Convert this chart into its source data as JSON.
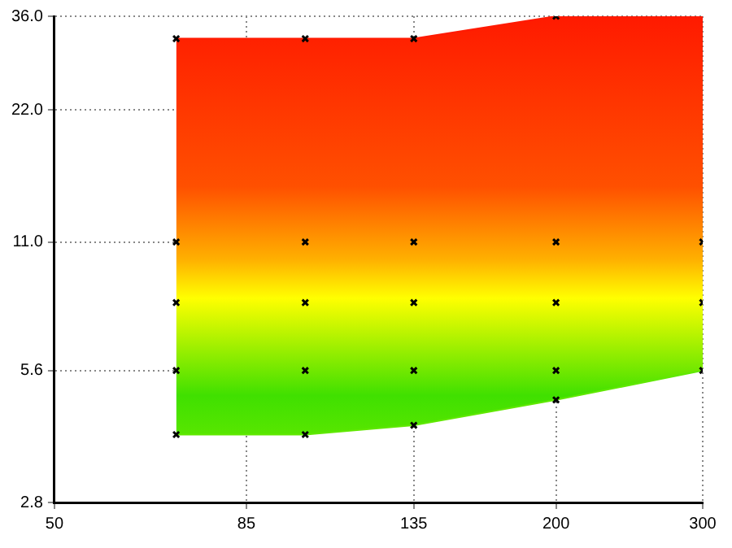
{
  "chart_data": {
    "type": "scatter",
    "log": "xy",
    "grid": true,
    "legend": false,
    "marker": "cross",
    "xlim": [
      50,
      300
    ],
    "xticks": [
      50,
      85,
      135,
      200,
      300
    ],
    "ylim": [
      2.8,
      36
    ],
    "yticks": [
      {
        "value": 2.8,
        "label": "2.8"
      },
      {
        "value": 5.6,
        "label": "5.6"
      },
      {
        "value": 11,
        "label": "11.0"
      },
      {
        "value": 22,
        "label": "22.0"
      },
      {
        "value": 36,
        "label": "36.0"
      }
    ],
    "series": [
      {
        "type": "area",
        "color": "#ff1a00",
        "marker": "none",
        "x": [
          70,
          100,
          135,
          200,
          300
        ],
        "values": [
          32,
          32,
          32,
          36,
          36
        ]
      },
      {
        "type": "line",
        "color": "#60e800",
        "marker": "none",
        "x": [
          70,
          100,
          135,
          200,
          300
        ],
        "values": [
          4,
          4,
          4.2,
          4.8,
          5.6
        ]
      },
      {
        "color": "#000000",
        "x": [
          70,
          70,
          70,
          70,
          70,
          100,
          100,
          100,
          100,
          100,
          135,
          135,
          135,
          135,
          135,
          200,
          200,
          200,
          200,
          200,
          300,
          300,
          300
        ],
        "values": [
          32,
          11,
          8,
          5.6,
          4,
          32,
          11,
          8,
          5.6,
          4,
          32,
          11,
          8,
          5.6,
          4.2,
          36,
          11,
          8,
          5.6,
          4.8,
          11,
          8,
          5.6
        ]
      }
    ]
  }
}
